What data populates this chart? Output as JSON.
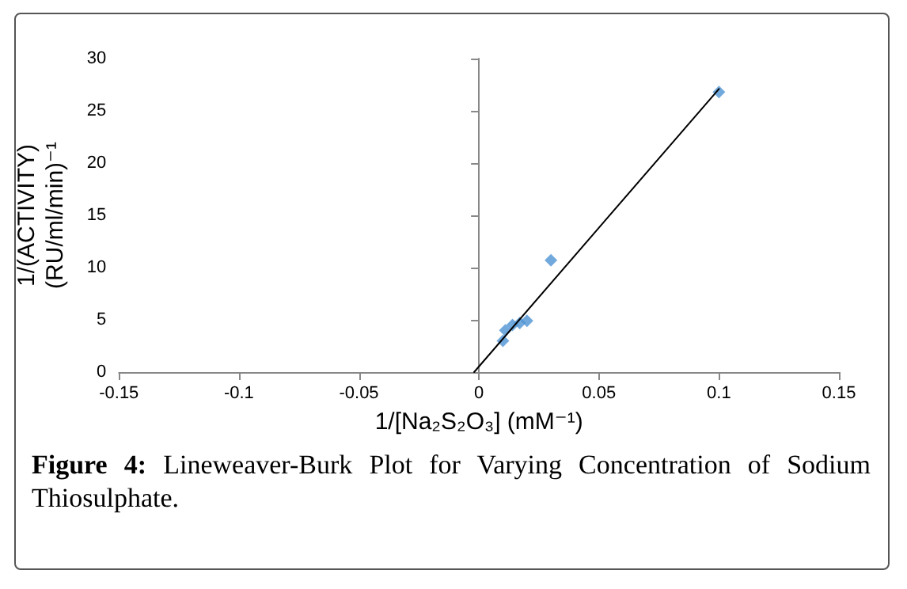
{
  "chart_data": {
    "type": "scatter",
    "xlabel": "1/[Na₂S₂O₃] (mM⁻¹)",
    "ylabel": "1/(ACTIVITY)\n(RU/ml/min)⁻¹",
    "annotations": [
      "Figure 4: Lineweaver-Burk Plot for Varying Concentration of Sodium Thiosulphate."
    ],
    "series": [
      {
        "color": "#4f94d4",
        "x": [
          0.01,
          0.011,
          0.014,
          0.017,
          0.02,
          0.03,
          0.1
        ],
        "values": [
          3.0,
          4.0,
          4.5,
          4.7,
          4.9,
          10.7,
          26.8
        ],
        "marker": "diamond"
      },
      {
        "type": "line",
        "color": "#000000",
        "x": [
          -0.002,
          0.1
        ],
        "values": [
          0,
          27.1
        ],
        "marker": "none",
        "line_style": "solid"
      }
    ],
    "xlim": [
      -0.15,
      0.15
    ],
    "xticks": [
      -0.15,
      -0.1,
      -0.05,
      0,
      0.05,
      0.1,
      0.15
    ],
    "ylim": [
      0,
      30
    ],
    "yticks": [
      0,
      5,
      10,
      15,
      20,
      25,
      30
    ]
  }
}
